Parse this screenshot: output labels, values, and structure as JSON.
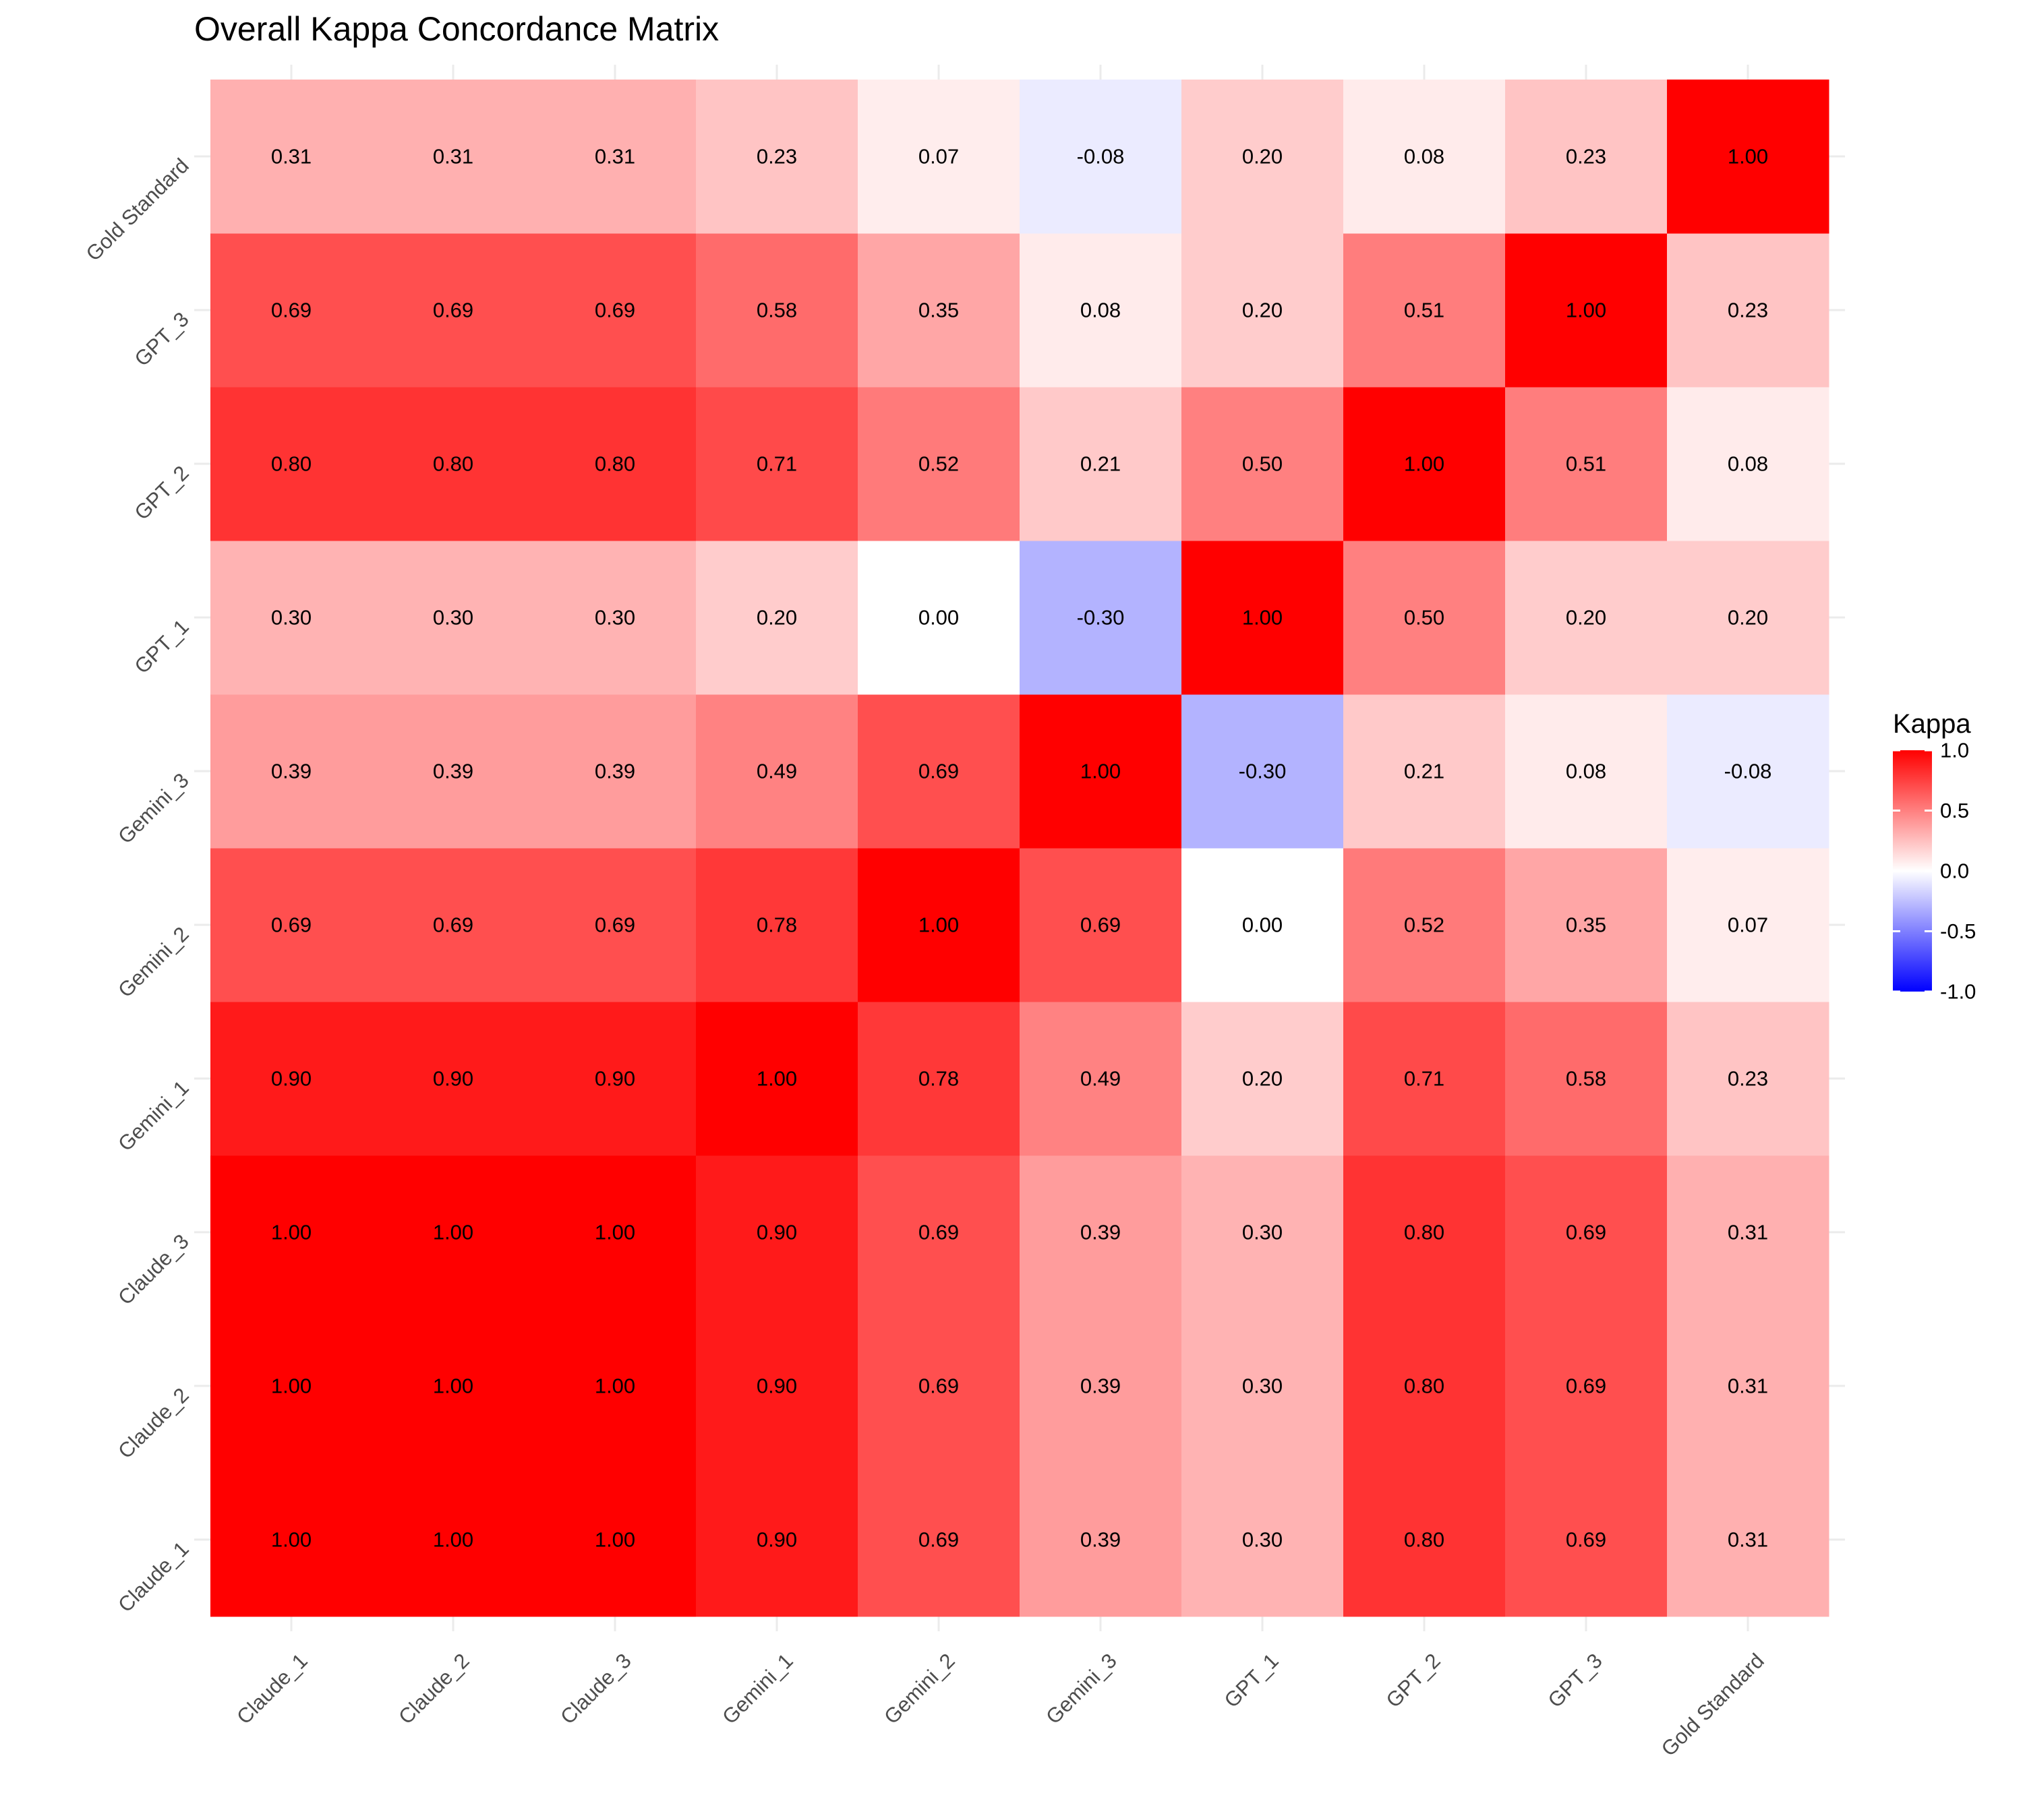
{
  "chart_data": {
    "type": "heatmap",
    "title": "Overall Kappa Concordance Matrix",
    "x_categories": [
      "Claude_1",
      "Claude_2",
      "Claude_3",
      "Gemini_1",
      "Gemini_2",
      "Gemini_3",
      "GPT_1",
      "GPT_2",
      "GPT_3",
      "Gold Standard"
    ],
    "y_categories": [
      "Claude_1",
      "Claude_2",
      "Claude_3",
      "Gemini_1",
      "Gemini_2",
      "Gemini_3",
      "GPT_1",
      "GPT_2",
      "GPT_3",
      "Gold Standard"
    ],
    "values": [
      [
        1.0,
        1.0,
        1.0,
        0.9,
        0.69,
        0.39,
        0.3,
        0.8,
        0.69,
        0.31
      ],
      [
        1.0,
        1.0,
        1.0,
        0.9,
        0.69,
        0.39,
        0.3,
        0.8,
        0.69,
        0.31
      ],
      [
        1.0,
        1.0,
        1.0,
        0.9,
        0.69,
        0.39,
        0.3,
        0.8,
        0.69,
        0.31
      ],
      [
        0.9,
        0.9,
        0.9,
        1.0,
        0.78,
        0.49,
        0.2,
        0.71,
        0.58,
        0.23
      ],
      [
        0.69,
        0.69,
        0.69,
        0.78,
        1.0,
        0.69,
        0.0,
        0.52,
        0.35,
        0.07
      ],
      [
        0.39,
        0.39,
        0.39,
        0.49,
        0.69,
        1.0,
        -0.3,
        0.21,
        0.08,
        -0.08
      ],
      [
        0.3,
        0.3,
        0.3,
        0.2,
        0.0,
        -0.3,
        1.0,
        0.5,
        0.2,
        0.2
      ],
      [
        0.8,
        0.8,
        0.8,
        0.71,
        0.52,
        0.21,
        0.5,
        1.0,
        0.51,
        0.08
      ],
      [
        0.69,
        0.69,
        0.69,
        0.58,
        0.35,
        0.08,
        0.2,
        0.51,
        1.0,
        0.23
      ],
      [
        0.31,
        0.31,
        0.31,
        0.23,
        0.07,
        -0.08,
        0.2,
        0.08,
        0.23,
        1.0
      ]
    ],
    "legend": {
      "title": "Kappa",
      "range": [
        -1,
        1
      ],
      "ticks": [
        "1.0",
        "0.5",
        "0.0",
        "-0.5",
        "-1.0"
      ],
      "placement": "right"
    },
    "colors": {
      "low": "#0000ff",
      "mid": "#ffffff",
      "high": "#ff0000"
    },
    "grid": true
  }
}
